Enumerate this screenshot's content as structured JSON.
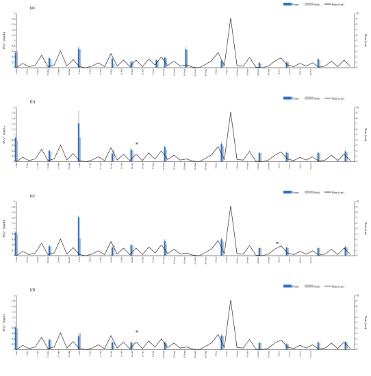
{
  "colors": {
    "front": "#1f6fd0",
    "back": "#bdbdbd",
    "rain": "#000000"
  },
  "chart_data": [
    {
      "type": "bar",
      "panel": "(a)",
      "ylabel": "PO₄³⁻ (mg/L)",
      "y2label": "Rain (cm)",
      "ylim": [
        0,
        2
      ],
      "y2lim": [
        0,
        10
      ],
      "yticks": [
        "0",
        "0.2",
        "0.4",
        "0.6",
        "0.8",
        "1",
        "1.2",
        "1.4",
        "1.6",
        "1.8",
        "2"
      ],
      "y2ticks": [
        "0",
        "1",
        "2",
        "3",
        "4",
        "5",
        "6",
        "7",
        "8",
        "9",
        "10"
      ],
      "legend": [
        "Front",
        "Back",
        "Rain (cm)"
      ],
      "annotation": "",
      "x_ticks": [
        "1-Jun",
        "6-Jun",
        "11-Jun",
        "16-Jun",
        "21-Jun",
        "26-Jun",
        "1-Jul",
        "6-Jul",
        "11-Jul",
        "16-Jul",
        "21-Jul",
        "26-Jul",
        "31-Jul",
        "5-Aug",
        "10-Aug",
        "15-Aug",
        "20-Aug",
        "25-Aug",
        "30-Aug",
        "4-Sep",
        "9-Sep",
        "14-Sep",
        "19-Sep",
        "24-Sep",
        "29-Sep",
        "4-Oct",
        "9-Oct",
        "14-Oct",
        "19-Oct"
      ],
      "sample_days": [
        1,
        17,
        31,
        47,
        56,
        68,
        72,
        82,
        99,
        117,
        130,
        145,
        158
      ],
      "front": [
        0.55,
        0.35,
        0.7,
        0.33,
        0.21,
        0.28,
        0.37,
        0.68,
        0.25,
        0.18,
        0.19,
        0.31,
        0.0
      ],
      "back": [
        0.6,
        0.33,
        0.68,
        0.14,
        0.25,
        0.25,
        0.35,
        0.65,
        0.22,
        0.15,
        0.2,
        0.29,
        0.0
      ],
      "front_err": [
        0.05,
        0.03,
        0.06,
        0.02,
        0.02,
        0.02,
        0.03,
        0.1,
        0.02,
        0.02,
        0.02,
        0.03,
        0.0
      ],
      "rain": {
        "days": [
          1,
          4,
          7,
          10,
          13,
          16,
          19,
          22,
          25,
          28,
          31,
          34,
          37,
          40,
          43,
          46,
          49,
          52,
          55,
          58,
          61,
          64,
          67,
          70,
          73,
          76,
          79,
          82,
          85,
          88,
          91,
          94,
          97,
          100,
          103,
          106,
          109,
          112,
          115,
          118,
          121,
          124,
          127,
          130,
          133,
          136,
          139,
          142,
          145,
          148,
          151,
          154,
          157,
          160
        ],
        "values": [
          0,
          0.8,
          0.2,
          0.5,
          2.3,
          0.2,
          0.5,
          3.1,
          0.3,
          1.5,
          0.2,
          0,
          0.3,
          0.9,
          0.2,
          2.6,
          0.3,
          1.4,
          0.2,
          1.4,
          0.2,
          1.6,
          0.5,
          2.0,
          0.4,
          1.2,
          0.3,
          0.5,
          0.1,
          0,
          0.6,
          1.3,
          2.8,
          0.4,
          9.2,
          0.4,
          0.3,
          1.9,
          0.1,
          0,
          0.3,
          1.2,
          1.8,
          0.5,
          0.2,
          0.8,
          0.3,
          0.9,
          0.1,
          0.3,
          1.2,
          0.2,
          1.4,
          0.2
        ]
      }
    },
    {
      "type": "bar",
      "panel": "(b)",
      "ylabel": "PO₄³⁻ (mg/L)",
      "y2label": "Rain (cm)",
      "ylim": [
        0,
        2
      ],
      "y2lim": [
        0,
        10
      ],
      "yticks": [
        "0",
        "0.2",
        "0.4",
        "0.6",
        "0.8",
        "1",
        "1.2",
        "1.4",
        "1.6",
        "1.8",
        "2"
      ],
      "y2ticks": [
        "0",
        "1",
        "2",
        "3",
        "4",
        "5",
        "6",
        "7",
        "8",
        "9",
        "10"
      ],
      "legend": [
        "Front",
        "Back",
        "Rain (cm)"
      ],
      "annotation": "*",
      "x_ticks": [
        "1-Jun",
        "6-Jun",
        "11-Jun",
        "16-Jun",
        "21-Jun",
        "26-Jun",
        "1-Jul",
        "6-Jul",
        "11-Jul",
        "16-Jul",
        "21-Jul",
        "26-Jul",
        "31-Jul",
        "5-Aug",
        "10-Aug",
        "15-Aug",
        "20-Aug",
        "25-Aug",
        "30-Aug",
        "4-Sep",
        "9-Sep",
        "14-Sep",
        "19-Sep",
        "24-Sep",
        "29-Sep",
        "4-Oct",
        "9-Oct",
        "14-Oct",
        "19-Oct"
      ],
      "sample_days": [
        1,
        17,
        31,
        47,
        56,
        72,
        99,
        117,
        130,
        145,
        158
      ],
      "front": [
        0.88,
        0.4,
        1.42,
        0.3,
        0.45,
        0.55,
        0.65,
        0.32,
        0.33,
        0.33,
        0.38
      ],
      "back": [
        0.76,
        0.36,
        0.9,
        0.42,
        0.42,
        0.45,
        0.58,
        0.32,
        0.32,
        0.32,
        0.35
      ],
      "front_err": [
        0.04,
        0.03,
        0.45,
        0.03,
        0.03,
        0.04,
        0.06,
        0.02,
        0.02,
        0.02,
        0.04
      ],
      "rain": {
        "days": [
          1,
          4,
          7,
          10,
          13,
          16,
          19,
          22,
          25,
          28,
          31,
          34,
          37,
          40,
          43,
          46,
          49,
          52,
          55,
          58,
          61,
          64,
          67,
          70,
          73,
          76,
          79,
          82,
          85,
          88,
          91,
          94,
          97,
          100,
          103,
          106,
          109,
          112,
          115,
          118,
          121,
          124,
          127,
          130,
          133,
          136,
          139,
          142,
          145,
          148,
          151,
          154,
          157,
          160
        ],
        "values": [
          0,
          0.8,
          0.2,
          0.5,
          2.3,
          0.2,
          0.5,
          3.1,
          0.3,
          1.5,
          0.2,
          0,
          0.3,
          0.9,
          0.2,
          2.6,
          0.3,
          1.4,
          0.2,
          1.4,
          0.2,
          1.6,
          0.5,
          2.0,
          0.4,
          1.2,
          0.3,
          0.5,
          0.1,
          0,
          0.6,
          1.3,
          2.8,
          0.4,
          9.2,
          0.4,
          0.3,
          1.9,
          0.1,
          0,
          0.3,
          1.2,
          1.8,
          0.5,
          0.2,
          0.8,
          0.3,
          0.9,
          0.1,
          0.3,
          1.2,
          0.2,
          1.4,
          0.2
        ]
      }
    },
    {
      "type": "bar",
      "panel": "(c)",
      "ylabel": "PO₄³⁻ (mg/L)",
      "y2label": "Rain (cm)",
      "ylim": [
        0,
        2
      ],
      "y2lim": [
        0,
        10
      ],
      "yticks": [
        "0",
        "0.2",
        "0.4",
        "0.6",
        "0.8",
        "1",
        "1.2",
        "1.4",
        "1.6",
        "1.8",
        "2"
      ],
      "y2ticks": [
        "0",
        "1",
        "2",
        "3",
        "4",
        "5",
        "6",
        "7",
        "8",
        "9",
        "10"
      ],
      "legend": [
        "Front",
        "Back",
        "Rain (cm)"
      ],
      "annotation": "*",
      "x_ticks": [
        "1-Jun",
        "6-Jun",
        "11-Jun",
        "16-Jun",
        "21-Jun",
        "26-Jun",
        "1-Jul",
        "6-Jul",
        "11-Jul",
        "16-Jul",
        "21-Jul",
        "26-Jul",
        "31-Jul",
        "5-Aug",
        "10-Aug",
        "15-Aug",
        "20-Aug",
        "25-Aug",
        "30-Aug",
        "4-Sep",
        "9-Sep",
        "14-Sep",
        "19-Sep",
        "24-Sep",
        "29-Sep",
        "4-Oct",
        "9-Oct",
        "14-Oct",
        "19-Oct"
      ],
      "sample_days": [
        1,
        17,
        31,
        47,
        56,
        72,
        99,
        117,
        130,
        145,
        158
      ],
      "front": [
        0.85,
        0.35,
        1.42,
        0.3,
        0.4,
        0.55,
        0.6,
        0.28,
        0.3,
        0.28,
        0.33
      ],
      "back": [
        0.8,
        0.34,
        0.65,
        0.38,
        0.38,
        0.42,
        0.52,
        0.28,
        0.28,
        0.28,
        0.3
      ],
      "front_err": [
        0.04,
        0.03,
        0.05,
        0.03,
        0.03,
        0.04,
        0.05,
        0.02,
        0.02,
        0.02,
        0.03
      ],
      "rain": {
        "days": [
          1,
          4,
          7,
          10,
          13,
          16,
          19,
          22,
          25,
          28,
          31,
          34,
          37,
          40,
          43,
          46,
          49,
          52,
          55,
          58,
          61,
          64,
          67,
          70,
          73,
          76,
          79,
          82,
          85,
          88,
          91,
          94,
          97,
          100,
          103,
          106,
          109,
          112,
          115,
          118,
          121,
          124,
          127,
          130,
          133,
          136,
          139,
          142,
          145,
          148,
          151,
          154,
          157,
          160
        ],
        "values": [
          0,
          0.8,
          0.2,
          0.5,
          2.3,
          0.2,
          0.5,
          3.1,
          0.3,
          1.5,
          0.2,
          0,
          0.3,
          0.9,
          0.2,
          2.6,
          0.3,
          1.4,
          0.2,
          1.4,
          0.2,
          1.6,
          0.5,
          2.0,
          0.4,
          1.2,
          0.3,
          0.5,
          0.1,
          0,
          0.6,
          1.3,
          2.8,
          0.4,
          9.2,
          0.4,
          0.3,
          1.9,
          0.1,
          0,
          0.3,
          1.2,
          1.8,
          0.5,
          0.2,
          0.8,
          0.3,
          0.9,
          0.1,
          0.3,
          1.2,
          0.2,
          1.4,
          0.2
        ]
      }
    },
    {
      "type": "bar",
      "panel": "(d)",
      "ylabel": "PO₄³⁻ (mg/L)",
      "y2label": "Rain (cm)",
      "ylim": [
        0,
        2
      ],
      "y2lim": [
        0,
        10
      ],
      "yticks": [
        "0",
        "0.2",
        "0.4",
        "0.6",
        "0.8",
        "1",
        "1.2",
        "1.4",
        "1.6",
        "1.8",
        "2"
      ],
      "y2ticks": [
        "0",
        "1",
        "2",
        "3",
        "4",
        "5",
        "6",
        "7",
        "8",
        "9",
        "10"
      ],
      "legend": [
        "Front",
        "Back",
        "Rain (cm)"
      ],
      "annotation": "*",
      "x_ticks": [
        "1-Jun",
        "6-Jun",
        "11-Jun",
        "16-Jun",
        "21-Jun",
        "26-Jun",
        "1-Jul",
        "6-Jul",
        "11-Jul",
        "16-Jul",
        "21-Jul",
        "26-Jul",
        "31-Jul",
        "5-Aug",
        "10-Aug",
        "15-Aug",
        "20-Aug",
        "25-Aug",
        "30-Aug",
        "4-Sep",
        "9-Sep",
        "14-Sep",
        "19-Sep",
        "24-Sep",
        "29-Sep",
        "4-Oct",
        "9-Oct",
        "14-Oct",
        "19-Oct"
      ],
      "sample_days": [
        1,
        17,
        31,
        47,
        56,
        72,
        99,
        117,
        130,
        145,
        158
      ],
      "front": [
        0.82,
        0.36,
        0.5,
        0.27,
        0.27,
        0.27,
        0.52,
        0.25,
        0.2,
        0.27,
        0.28
      ],
      "back": [
        0.78,
        0.38,
        0.62,
        0.25,
        0.25,
        0.25,
        0.5,
        0.25,
        0.2,
        0.25,
        0.28
      ],
      "front_err": [
        0.04,
        0.03,
        0.05,
        0.02,
        0.02,
        0.02,
        0.05,
        0.02,
        0.02,
        0.02,
        0.02
      ],
      "rain": {
        "days": [
          1,
          4,
          7,
          10,
          13,
          16,
          19,
          22,
          25,
          28,
          31,
          34,
          37,
          40,
          43,
          46,
          49,
          52,
          55,
          58,
          61,
          64,
          67,
          70,
          73,
          76,
          79,
          82,
          85,
          88,
          91,
          94,
          97,
          100,
          103,
          106,
          109,
          112,
          115,
          118,
          121,
          124,
          127,
          130,
          133,
          136,
          139,
          142,
          145,
          148,
          151,
          154,
          157,
          160
        ],
        "values": [
          0,
          0.8,
          0.2,
          0.5,
          2.3,
          0.2,
          0.5,
          3.1,
          0.3,
          1.5,
          0.2,
          0,
          0.3,
          0.9,
          0.2,
          2.6,
          0.3,
          1.4,
          0.2,
          1.4,
          0.2,
          1.6,
          0.5,
          2.0,
          0.4,
          1.2,
          0.3,
          0.5,
          0.1,
          0,
          0.6,
          1.3,
          2.8,
          0.4,
          9.2,
          0.4,
          0.3,
          1.9,
          0.1,
          0,
          0.3,
          1.2,
          1.8,
          0.5,
          0.2,
          0.8,
          0.3,
          0.9,
          0.1,
          0.3,
          1.2,
          0.2,
          1.4,
          0.2
        ]
      }
    }
  ]
}
